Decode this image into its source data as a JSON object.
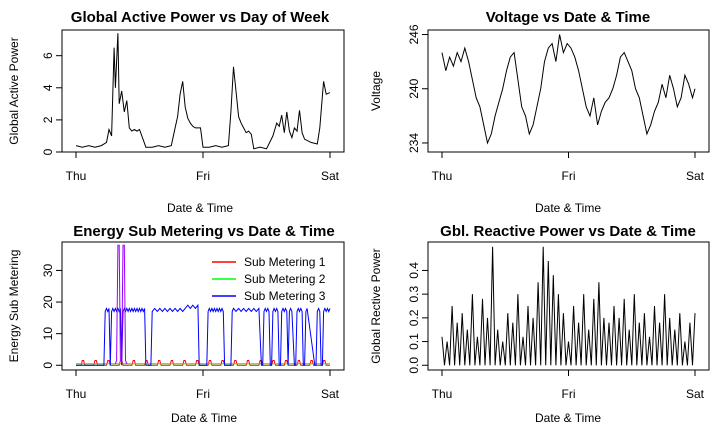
{
  "chart_data": [
    {
      "type": "line",
      "title": "Global Active Power vs Day of Week",
      "xlabel": "Date & Time",
      "ylabel": "Global Active Power",
      "x_ticks": [
        "Thu",
        "Fri",
        "Sat"
      ],
      "y_ticks": [
        0,
        2,
        4,
        6
      ],
      "xlim": [
        0,
        2
      ],
      "ylim": [
        0,
        7.6
      ],
      "grid": false,
      "color": "#000000",
      "series": [
        {
          "x": [
            0.0,
            0.05,
            0.1,
            0.15,
            0.2,
            0.24,
            0.26,
            0.28,
            0.3,
            0.31,
            0.33,
            0.34,
            0.36,
            0.38,
            0.4,
            0.42,
            0.44,
            0.46,
            0.48,
            0.5,
            0.55,
            0.6,
            0.65,
            0.7,
            0.75,
            0.78,
            0.8,
            0.82,
            0.84,
            0.86,
            0.88,
            0.9,
            0.92,
            0.94,
            0.96,
            0.98,
            1.0,
            1.05,
            1.1,
            1.15,
            1.2,
            1.22,
            1.24,
            1.26,
            1.28,
            1.3,
            1.32,
            1.34,
            1.36,
            1.38,
            1.4,
            1.45,
            1.5,
            1.55,
            1.58,
            1.6,
            1.62,
            1.64,
            1.66,
            1.68,
            1.7,
            1.72,
            1.74,
            1.76,
            1.78,
            1.8,
            1.85,
            1.9,
            1.92,
            1.94,
            1.95,
            1.97,
            2.0
          ],
          "y": [
            0.4,
            0.3,
            0.4,
            0.3,
            0.4,
            0.6,
            1.4,
            1.0,
            6.5,
            4.0,
            7.4,
            3.0,
            3.8,
            2.5,
            3.2,
            1.5,
            1.3,
            1.4,
            1.3,
            1.4,
            0.3,
            0.3,
            0.4,
            0.3,
            0.4,
            1.5,
            2.2,
            3.6,
            4.4,
            2.8,
            2.1,
            1.8,
            1.6,
            1.5,
            1.5,
            1.5,
            0.3,
            0.3,
            0.4,
            0.3,
            0.4,
            2.5,
            5.3,
            3.8,
            2.2,
            1.8,
            1.5,
            1.2,
            1.3,
            1.1,
            0.2,
            0.3,
            0.2,
            1.0,
            1.8,
            1.6,
            2.3,
            1.2,
            2.5,
            1.3,
            0.9,
            1.5,
            1.3,
            2.6,
            1.2,
            0.8,
            0.6,
            0.5,
            1.5,
            3.5,
            4.4,
            3.6,
            3.7
          ]
        }
      ]
    },
    {
      "type": "line",
      "title": "Voltage vs Date & Time",
      "xlabel": "Date & Time",
      "ylabel": "Voltage",
      "x_ticks": [
        "Thu",
        "Fri",
        "Sat"
      ],
      "y_ticks": [
        234,
        240,
        246
      ],
      "xlim": [
        0,
        2
      ],
      "ylim": [
        233,
        246.5
      ],
      "grid": false,
      "color": "#000000",
      "series": [
        {
          "x": [
            0.0,
            0.03,
            0.06,
            0.09,
            0.12,
            0.15,
            0.18,
            0.21,
            0.24,
            0.27,
            0.3,
            0.33,
            0.36,
            0.39,
            0.42,
            0.45,
            0.48,
            0.51,
            0.54,
            0.57,
            0.6,
            0.63,
            0.66,
            0.69,
            0.72,
            0.75,
            0.78,
            0.81,
            0.84,
            0.87,
            0.9,
            0.93,
            0.96,
            0.99,
            1.02,
            1.05,
            1.08,
            1.11,
            1.14,
            1.17,
            1.2,
            1.23,
            1.26,
            1.29,
            1.32,
            1.35,
            1.38,
            1.41,
            1.44,
            1.47,
            1.5,
            1.53,
            1.56,
            1.59,
            1.62,
            1.65,
            1.68,
            1.71,
            1.74,
            1.77,
            1.8,
            1.83,
            1.86,
            1.89,
            1.92,
            1.95,
            1.98,
            2.0
          ],
          "y": [
            244.0,
            242.0,
            243.5,
            242.5,
            244.0,
            243.0,
            244.5,
            243.0,
            241.0,
            239.0,
            238.0,
            236.0,
            234.0,
            235.0,
            237.0,
            238.5,
            240.0,
            242.0,
            243.5,
            244.0,
            241.0,
            238.0,
            237.0,
            235.0,
            236.0,
            238.0,
            240.0,
            243.0,
            244.5,
            245.0,
            243.0,
            246.0,
            244.0,
            245.0,
            244.5,
            243.5,
            242.0,
            240.0,
            238.0,
            237.0,
            239.0,
            236.0,
            237.5,
            238.5,
            239.0,
            240.0,
            241.5,
            243.5,
            244.0,
            243.0,
            242.0,
            240.0,
            239.0,
            237.0,
            235.0,
            236.0,
            237.5,
            238.5,
            240.5,
            239.0,
            241.5,
            240.0,
            238.0,
            239.0,
            241.5,
            240.5,
            239.0,
            240.0
          ]
        }
      ]
    },
    {
      "type": "line",
      "title": "Energy Sub Metering vs Date & Time",
      "xlabel": "Date & Time",
      "ylabel": "Energy Sub Metering",
      "x_ticks": [
        "Thu",
        "Fri",
        "Sat"
      ],
      "y_ticks": [
        0,
        10,
        20,
        30
      ],
      "xlim": [
        0,
        2
      ],
      "ylim": [
        -1.5,
        39
      ],
      "grid": false,
      "legend": "top-right",
      "series": [
        {
          "name": "Sub Metering 1",
          "color": "#ff0000",
          "x": [
            0.0,
            0.04,
            0.05,
            0.06,
            0.07,
            0.14,
            0.15,
            0.16,
            0.17,
            0.24,
            0.25,
            0.26,
            0.27,
            0.34,
            0.35,
            0.36,
            0.37,
            0.44,
            0.45,
            0.46,
            0.47,
            0.54,
            0.55,
            0.56,
            0.57,
            0.64,
            0.65,
            0.66,
            0.67,
            0.74,
            0.75,
            0.76,
            0.77,
            0.84,
            0.85,
            0.86,
            0.87,
            0.94,
            0.95,
            0.96,
            0.97,
            1.04,
            1.05,
            1.06,
            1.07,
            1.14,
            1.15,
            1.16,
            1.17,
            1.24,
            1.25,
            1.26,
            1.27,
            1.34,
            1.35,
            1.36,
            1.37,
            1.44,
            1.45,
            1.46,
            1.47,
            1.54,
            1.55,
            1.56,
            1.57,
            1.64,
            1.65,
            1.66,
            1.67,
            1.74,
            1.75,
            1.76,
            1.77,
            1.84,
            1.85,
            1.86,
            1.87,
            1.94,
            1.95,
            1.96,
            1.97,
            2.0
          ],
          "y": [
            0,
            0,
            1.5,
            1.5,
            0,
            0,
            1.5,
            1.5,
            0,
            0,
            1.5,
            1.5,
            0,
            0,
            1.5,
            1.5,
            0,
            0,
            1.5,
            1.5,
            0,
            0,
            1.5,
            1.5,
            0,
            0,
            1.5,
            1.5,
            0,
            0,
            1.5,
            1.5,
            0,
            0,
            1.5,
            1.5,
            0,
            0,
            1.5,
            1.5,
            0,
            0,
            1.5,
            1.5,
            0,
            0,
            1.5,
            1.5,
            0,
            0,
            1.5,
            1.5,
            0,
            0,
            1.5,
            1.5,
            0,
            0,
            1.5,
            1.5,
            0,
            0,
            1.5,
            1.5,
            0,
            0,
            1.5,
            1.5,
            0,
            0,
            1.5,
            1.5,
            0,
            0,
            1.5,
            1.5,
            0,
            0,
            1.5,
            1.5,
            0,
            0
          ]
        },
        {
          "name": "Sub Metering 2",
          "color": "#00ff00",
          "x": [
            0.0,
            2.0
          ],
          "y": [
            0.5,
            0.5
          ]
        },
        {
          "name": "Sub Metering 3",
          "color": "#0000ff",
          "x": [
            0.0,
            0.22,
            0.23,
            0.24,
            0.25,
            0.26,
            0.27,
            0.28,
            0.29,
            0.3,
            0.31,
            0.32,
            0.33,
            0.34,
            0.35,
            0.36,
            0.37,
            0.38,
            0.39,
            0.4,
            0.41,
            0.42,
            0.43,
            0.44,
            0.45,
            0.46,
            0.47,
            0.48,
            0.49,
            0.5,
            0.51,
            0.52,
            0.53,
            0.54,
            0.55,
            0.59,
            0.6,
            0.62,
            0.64,
            0.66,
            0.68,
            0.7,
            0.72,
            0.74,
            0.76,
            0.78,
            0.8,
            0.82,
            0.84,
            0.86,
            0.88,
            0.9,
            0.92,
            0.94,
            0.96,
            0.97,
            0.98,
            1.0,
            1.03,
            1.04,
            1.05,
            1.06,
            1.07,
            1.08,
            1.09,
            1.1,
            1.11,
            1.12,
            1.13,
            1.14,
            1.15,
            1.16,
            1.17,
            1.22,
            1.23,
            1.24,
            1.26,
            1.28,
            1.3,
            1.32,
            1.34,
            1.36,
            1.38,
            1.4,
            1.42,
            1.44,
            1.46,
            1.47,
            1.48,
            1.49,
            1.5,
            1.51,
            1.52,
            1.53,
            1.54,
            1.55,
            1.56,
            1.57,
            1.58,
            1.59,
            1.6,
            1.61,
            1.62,
            1.63,
            1.64,
            1.65,
            1.66,
            1.67,
            1.68,
            1.69,
            1.7,
            1.72,
            1.73,
            1.74,
            1.75,
            1.76,
            1.77,
            1.78,
            1.79,
            1.8,
            1.81,
            1.82,
            1.88,
            1.89,
            1.9,
            1.91,
            1.92,
            1.93,
            1.94,
            1.95,
            1.96,
            1.97,
            1.98,
            1.99,
            2.0
          ],
          "y": [
            0,
            0,
            17,
            18,
            17,
            18,
            0,
            17,
            18,
            17,
            18,
            17,
            18,
            17,
            18,
            0,
            17,
            18,
            17,
            18,
            17,
            18,
            17,
            18,
            17,
            18,
            17,
            18,
            17,
            18,
            17,
            18,
            17,
            18,
            0,
            0,
            17,
            18,
            17,
            18,
            17,
            18,
            17,
            18,
            17,
            18,
            17,
            18,
            17,
            18,
            19,
            18,
            19,
            18,
            19,
            0,
            0,
            0,
            0,
            17,
            18,
            17,
            18,
            17,
            18,
            17,
            18,
            17,
            18,
            17,
            18,
            17,
            0,
            0,
            17,
            18,
            17,
            18,
            17,
            18,
            17,
            18,
            17,
            18,
            17,
            18,
            0,
            0,
            17,
            18,
            17,
            18,
            17,
            0,
            0,
            17,
            18,
            17,
            18,
            17,
            0,
            0,
            17,
            18,
            17,
            18,
            17,
            0,
            17,
            18,
            17,
            0,
            0,
            17,
            18,
            17,
            18,
            17,
            0,
            0,
            17,
            18,
            0,
            0,
            17,
            18,
            17,
            0,
            0,
            17,
            18,
            17,
            18,
            17,
            18
          ]
        },
        {
          "name": "",
          "color": "#9900ff",
          "x": [
            0.31,
            0.32,
            0.33,
            0.34,
            0.35,
            0.36,
            0.37,
            0.38,
            0.39,
            0.4
          ],
          "y": [
            0.5,
            1.5,
            38,
            38,
            1.5,
            1.5,
            38,
            38,
            1.5,
            0.5
          ]
        }
      ]
    },
    {
      "type": "line",
      "title": "Gbl. Reactive Power vs Date & Time",
      "xlabel": "Date & Time",
      "ylabel": "Global Rective Power",
      "x_ticks": [
        "Thu",
        "Fri",
        "Sat"
      ],
      "y_ticks": [
        "0.0",
        "0.1",
        "0.2",
        "0.3",
        "0.4"
      ],
      "xlim": [
        0,
        2
      ],
      "ylim": [
        -0.02,
        0.52
      ],
      "grid": false,
      "color": "#000000",
      "series": [
        {
          "x": [
            0.0,
            0.02,
            0.04,
            0.06,
            0.08,
            0.1,
            0.12,
            0.14,
            0.16,
            0.18,
            0.2,
            0.22,
            0.24,
            0.26,
            0.28,
            0.3,
            0.32,
            0.34,
            0.36,
            0.38,
            0.4,
            0.42,
            0.44,
            0.46,
            0.48,
            0.5,
            0.52,
            0.54,
            0.56,
            0.58,
            0.6,
            0.62,
            0.64,
            0.66,
            0.68,
            0.7,
            0.72,
            0.74,
            0.76,
            0.78,
            0.8,
            0.82,
            0.84,
            0.86,
            0.88,
            0.9,
            0.92,
            0.94,
            0.96,
            0.98,
            1.0,
            1.02,
            1.04,
            1.06,
            1.08,
            1.1,
            1.12,
            1.14,
            1.16,
            1.18,
            1.2,
            1.22,
            1.24,
            1.26,
            1.28,
            1.3,
            1.32,
            1.34,
            1.36,
            1.38,
            1.4,
            1.42,
            1.44,
            1.46,
            1.48,
            1.5,
            1.52,
            1.54,
            1.56,
            1.58,
            1.6,
            1.62,
            1.64,
            1.66,
            1.68,
            1.7,
            1.72,
            1.74,
            1.76,
            1.78,
            1.8,
            1.82,
            1.84,
            1.86,
            1.88,
            1.9,
            1.92,
            1.94,
            1.96,
            1.98,
            2.0
          ],
          "y": [
            0.12,
            0.0,
            0.1,
            0.0,
            0.25,
            0.0,
            0.18,
            0.0,
            0.22,
            0.0,
            0.15,
            0.0,
            0.3,
            0.0,
            0.12,
            0.0,
            0.28,
            0.0,
            0.2,
            0.0,
            0.5,
            0.0,
            0.15,
            0.0,
            0.1,
            0.0,
            0.22,
            0.0,
            0.18,
            0.0,
            0.3,
            0.0,
            0.12,
            0.0,
            0.25,
            0.0,
            0.2,
            0.0,
            0.35,
            0.0,
            0.5,
            0.0,
            0.44,
            0.0,
            0.38,
            0.0,
            0.3,
            0.0,
            0.22,
            0.0,
            0.1,
            0.0,
            0.25,
            0.0,
            0.18,
            0.0,
            0.3,
            0.0,
            0.15,
            0.0,
            0.28,
            0.0,
            0.35,
            0.0,
            0.2,
            0.0,
            0.18,
            0.0,
            0.25,
            0.0,
            0.2,
            0.0,
            0.28,
            0.0,
            0.15,
            0.0,
            0.3,
            0.0,
            0.18,
            0.0,
            0.22,
            0.0,
            0.12,
            0.0,
            0.25,
            0.0,
            0.18,
            0.0,
            0.3,
            0.0,
            0.2,
            0.0,
            0.15,
            0.0,
            0.22,
            0.0,
            0.1,
            0.0,
            0.18,
            0.0,
            0.22
          ]
        }
      ]
    }
  ]
}
